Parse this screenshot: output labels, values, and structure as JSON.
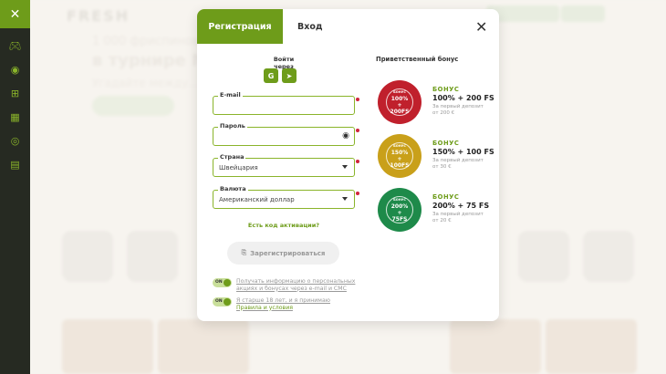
{
  "sidebar": {
    "items": [
      "gamepad-icon",
      "ball-icon",
      "gift-icon",
      "calendar-icon",
      "support-24-icon",
      "chat-icon"
    ]
  },
  "background": {
    "logo": "FRESH",
    "headline1": "1 000 фриспинов",
    "headline2": "в турнире Ne...",
    "headline3": "Угадайте между..."
  },
  "modal": {
    "tabs": {
      "register": "Регистрация",
      "login": "Вход"
    },
    "login_via": "Войти через",
    "social": {
      "google": "G",
      "telegram": "➤"
    },
    "fields": {
      "email": {
        "label": "E-mail",
        "value": ""
      },
      "password": {
        "label": "Пароль",
        "value": ""
      },
      "country": {
        "label": "Страна",
        "value": "Швейцария"
      },
      "currency": {
        "label": "Валюта",
        "value": "Американский доллар"
      }
    },
    "activation_link": "Есть код активации?",
    "register_button": "Зарегистрироваться",
    "toggles": [
      {
        "state": "ON",
        "text": "Получать информацию о персональных акциях и бонусах через e-mail и СМС"
      },
      {
        "state": "ON",
        "text": "Я старше 18 лет, и я принимаю",
        "link": "Правила и условия"
      }
    ],
    "welcome": {
      "title": "Приветственный бонус",
      "bonuses": [
        {
          "badge_top": "БОНУС",
          "badge_main": "100%",
          "badge_plus": "+",
          "badge_fs": "200FS",
          "badge_ribbon": "FIRST DEPOSIT",
          "color": "#c0202c",
          "label": "БОНУС",
          "value": "100% + 200 FS",
          "sub1": "За первый депозит",
          "sub2": "от 200 €"
        },
        {
          "badge_top": "БОНУС",
          "badge_main": "150%",
          "badge_plus": "+",
          "badge_fs": "100FS",
          "badge_ribbon": "FIRST DEPOSIT",
          "color": "#c9a01a",
          "label": "БОНУС",
          "value": "150% + 100 FS",
          "sub1": "За первый депозит",
          "sub2": "от 30 €"
        },
        {
          "badge_top": "БОНУС",
          "badge_main": "200%",
          "badge_plus": "+",
          "badge_fs": "75FS",
          "badge_ribbon": "FIRST DEPOSIT",
          "color": "#1e8a4a",
          "label": "БОНУС",
          "value": "200% + 75 FS",
          "sub1": "За первый депозит",
          "sub2": "от 20 €"
        }
      ]
    }
  },
  "colors": {
    "accent": "#6e9c1a",
    "sidebar": "#262a22",
    "required": "#d0243c"
  }
}
